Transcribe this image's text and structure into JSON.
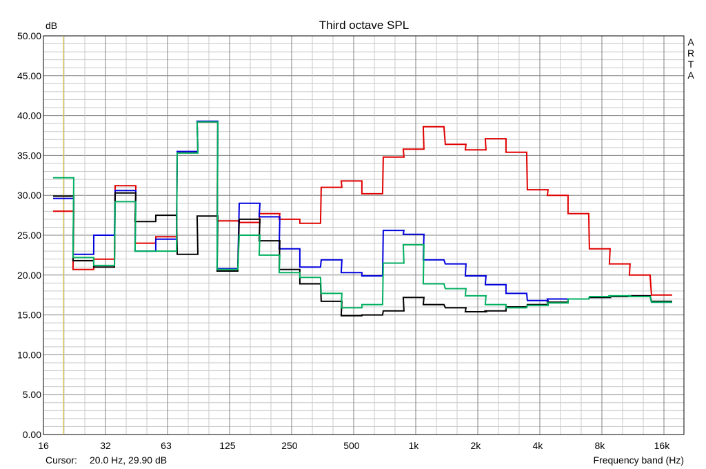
{
  "chart_data": {
    "type": "line",
    "step": true,
    "title": "Third octave SPL",
    "y_unit": "dB",
    "xlabel": "Frequency band (Hz)",
    "watermark": [
      "A",
      "R",
      "T",
      "A"
    ],
    "ylim": [
      0,
      50
    ],
    "y_ticks": [
      "0.00",
      "5.00",
      "10.00",
      "15.00",
      "20.00",
      "25.00",
      "30.00",
      "35.00",
      "40.00",
      "45.00",
      "50.00"
    ],
    "x_scale": "log2",
    "xlim": [
      16,
      22000
    ],
    "x_ticks": [
      {
        "f": 16,
        "label": "16"
      },
      {
        "f": 32,
        "label": "32"
      },
      {
        "f": 63,
        "label": "63"
      },
      {
        "f": 125,
        "label": "125"
      },
      {
        "f": 250,
        "label": "250"
      },
      {
        "f": 500,
        "label": "500"
      },
      {
        "f": 1000,
        "label": "1k"
      },
      {
        "f": 2000,
        "label": "2k"
      },
      {
        "f": 4000,
        "label": "4k"
      },
      {
        "f": 8000,
        "label": "8k"
      },
      {
        "f": 16000,
        "label": "16k"
      }
    ],
    "cursor": {
      "label": "Cursor:",
      "value": "20.0 Hz, 29.90 dB",
      "freq": 20.0
    },
    "bands": [
      20,
      25,
      31.5,
      40,
      50,
      63,
      80,
      100,
      125,
      160,
      200,
      250,
      315,
      400,
      500,
      630,
      800,
      1000,
      1250,
      1600,
      2000,
      2500,
      3150,
      4000,
      5000,
      6300,
      8000,
      10000,
      12500,
      16000
    ],
    "series": [
      {
        "color": "#e00000",
        "values": [
          28.0,
          20.7,
          22.0,
          31.2,
          24.0,
          24.8,
          35.4,
          39.2,
          26.8,
          26.6,
          27.7,
          27.0,
          26.5,
          31.0,
          31.8,
          30.2,
          34.8,
          35.8,
          38.6,
          36.4,
          35.7,
          37.1,
          35.4,
          30.7,
          30.0,
          27.7,
          23.3,
          21.4,
          20.0,
          17.5
        ]
      },
      {
        "color": "#0000dd",
        "values": [
          29.6,
          22.6,
          25.0,
          30.6,
          23.0,
          24.5,
          35.5,
          39.3,
          20.8,
          29.0,
          27.3,
          23.3,
          21.0,
          21.9,
          20.3,
          19.9,
          25.6,
          25.1,
          21.9,
          21.4,
          19.9,
          18.8,
          17.7,
          16.8,
          17.0,
          17.0,
          17.2,
          17.3,
          17.4,
          16.6
        ]
      },
      {
        "color": "#000000",
        "values": [
          29.9,
          21.8,
          21.0,
          30.3,
          26.7,
          27.5,
          22.6,
          27.4,
          20.5,
          27.0,
          24.3,
          20.7,
          18.9,
          16.7,
          14.9,
          15.0,
          15.5,
          17.2,
          16.3,
          15.9,
          15.4,
          15.5,
          16.0,
          16.3,
          16.6,
          17.0,
          17.2,
          17.3,
          17.4,
          16.7
        ]
      },
      {
        "color": "#00b060",
        "values": [
          32.2,
          22.2,
          21.2,
          29.2,
          23.0,
          23.0,
          35.3,
          39.2,
          20.7,
          25.0,
          22.5,
          20.3,
          19.7,
          17.7,
          15.9,
          16.3,
          21.5,
          23.8,
          18.9,
          18.3,
          17.4,
          16.3,
          15.9,
          16.2,
          16.5,
          17.0,
          17.3,
          17.4,
          17.3,
          16.6
        ]
      }
    ]
  }
}
